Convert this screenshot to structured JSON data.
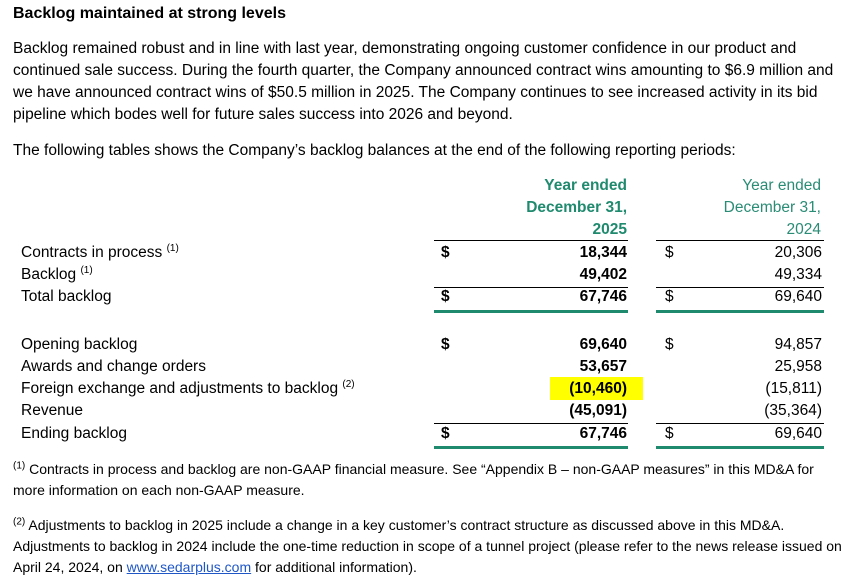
{
  "heading": "Backlog maintained at strong levels",
  "intro_paragraph": "Backlog remained robust and in line with last year, demonstrating ongoing customer confidence in our product and continued sale success. During the fourth quarter, the Company announced contract wins amounting to $6.9 million and we have announced contract wins of $50.5 million in 2025. The Company continues to see increased activity in its bid pipeline which bodes well for future sales success into 2026 and beyond.",
  "table_intro": "The following tables shows the Company’s backlog balances at the end of the following reporting periods:",
  "columns": {
    "y2025": {
      "line1": "Year ended",
      "line2": "December 31,",
      "line3": "2025"
    },
    "y2024": {
      "line1": "Year ended",
      "line2": "December 31,",
      "line3": "2024"
    }
  },
  "currency_symbol": "$",
  "table1": [
    {
      "label": "Contracts in process",
      "note": "(1)",
      "v2025": "18,344",
      "v2024": "20,306"
    },
    {
      "label": "Backlog",
      "note": "(1)",
      "v2025": "49,402",
      "v2024": "49,334"
    },
    {
      "label": "Total backlog",
      "note": "",
      "v2025": "67,746",
      "v2024": "69,640"
    }
  ],
  "table2": [
    {
      "label": "Opening backlog",
      "note": "",
      "v2025": "69,640",
      "v2024": "94,857"
    },
    {
      "label": "Awards and change orders",
      "note": "",
      "v2025": "53,657",
      "v2024": "25,958"
    },
    {
      "label": "Foreign exchange and adjustments to backlog",
      "note": "(2)",
      "v2025": "(10,460)",
      "v2024": "(15,811)"
    },
    {
      "label": "Revenue",
      "note": "",
      "v2025": "(45,091)",
      "v2024": "(35,364)"
    },
    {
      "label": "Ending backlog",
      "note": "",
      "v2025": "67,746",
      "v2024": "69,640"
    }
  ],
  "footnotes": {
    "fn1_marker": "(1)",
    "fn1_text": " Contracts in process and backlog are non-GAAP financial measure. See “Appendix B – non-GAAP measures” in this MD&A for more information on each non-GAAP measure.",
    "fn2_marker": "(2)",
    "fn2_text_a": " Adjustments to backlog in 2025 include a change in a key customer’s contract structure as discussed above in this MD&A. Adjustments to backlog in 2024 include the one-time reduction in scope of a tunnel project (please refer to the news release issued on April 24, 2024, on ",
    "fn2_link": "www.sedarplus.com",
    "fn2_text_b": " for additional information)."
  },
  "colors": {
    "green_rule": "#1f8a6e",
    "header_2025": "#1f8a6e",
    "header_2024": "#2a8c75",
    "highlight": "#ffff00",
    "link": "#1f57c7"
  }
}
